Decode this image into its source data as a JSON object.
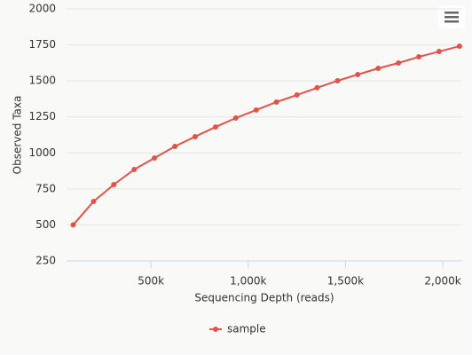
{
  "chart_data": {
    "type": "line",
    "x_label": "Sequencing Depth (reads)",
    "y_label": "Observed Taxa",
    "x": [
      100,
      205,
      309,
      414,
      518,
      623,
      727,
      832,
      936,
      1041,
      1145,
      1250,
      1354,
      1459,
      1563,
      1668,
      1772,
      1877,
      1981,
      2086
    ],
    "series": [
      {
        "name": "sample",
        "color": "#e4534a",
        "values": [
          500,
          663,
          780,
          885,
          965,
          1045,
          1113,
          1180,
          1242,
          1298,
          1353,
          1402,
          1452,
          1501,
          1544,
          1587,
          1624,
          1667,
          1704,
          1741
        ]
      }
    ],
    "xlim": [
      66,
      2100
    ],
    "xticks": [
      {
        "value": 500,
        "label": "500k"
      },
      {
        "value": 1000,
        "label": "1,000k"
      },
      {
        "value": 1500,
        "label": "1,500k"
      },
      {
        "value": 2000,
        "label": "2,000k"
      }
    ],
    "ylim": [
      250,
      2000
    ],
    "yticks": [
      250,
      500,
      750,
      1000,
      1250,
      1500,
      1750,
      2000
    ],
    "grid": true,
    "legend": "bottom"
  }
}
